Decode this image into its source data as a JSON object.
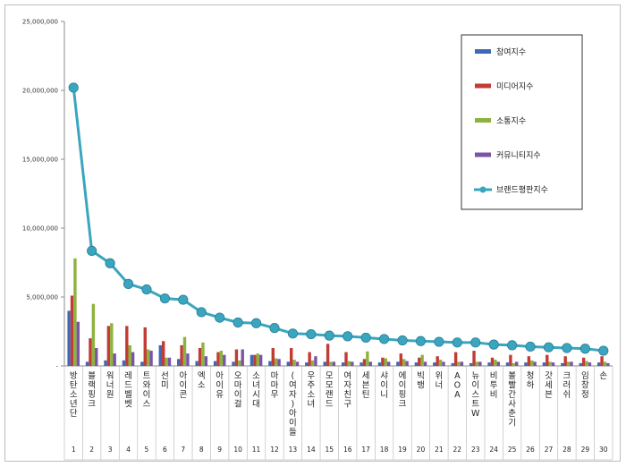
{
  "chart_data": {
    "type": "bar",
    "ylim": [
      0,
      25000000
    ],
    "y_ticks": [
      "-",
      "5,000,000",
      "10,000,000",
      "15,000,000",
      "20,000,000",
      "25,000,000"
    ],
    "y_tick_values": [
      0,
      5000000,
      10000000,
      15000000,
      20000000,
      25000000
    ],
    "grid": false,
    "legend_position": "top-right",
    "ranks": [
      "1",
      "2",
      "3",
      "4",
      "5",
      "6",
      "7",
      "8",
      "9",
      "10",
      "11",
      "12",
      "13",
      "14",
      "15",
      "16",
      "17",
      "18",
      "19",
      "20",
      "21",
      "22",
      "23",
      "24",
      "25",
      "26",
      "27",
      "28",
      "29",
      "30"
    ],
    "categories": [
      "방탄소년단",
      "블랙핑크",
      "워너원",
      "레드벨벳",
      "트와이스",
      "선미",
      "아이콘",
      "엑소",
      "아이유",
      "오마이걸",
      "소녀시대",
      "마마무",
      "(여자)아이들",
      "우주소녀",
      "모모랜드",
      "여자친구",
      "세븐틴",
      "샤이니",
      "에이핑크",
      "빅뱅",
      "위너",
      "AOA",
      "뉴이스트W",
      "비투비",
      "볼빨간사춘기",
      "청하",
      "갓세븐",
      "크러쉬",
      "임창정",
      "손"
    ],
    "series": [
      {
        "name": "참여지수",
        "type": "bar",
        "color": "#3f68b5",
        "values": [
          4000000,
          300000,
          400000,
          400000,
          300000,
          1500000,
          500000,
          350000,
          350000,
          300000,
          800000,
          350000,
          300000,
          250000,
          300000,
          250000,
          250000,
          250000,
          300000,
          250000,
          250000,
          200000,
          200000,
          250000,
          250000,
          250000,
          250000,
          200000,
          200000,
          250000
        ]
      },
      {
        "name": "미디어지수",
        "type": "bar",
        "color": "#c23b36",
        "values": [
          5100000,
          2000000,
          2900000,
          2900000,
          2800000,
          1800000,
          1500000,
          1300000,
          1000000,
          1200000,
          800000,
          1300000,
          1300000,
          1000000,
          1600000,
          1000000,
          500000,
          600000,
          900000,
          600000,
          700000,
          1000000,
          1100000,
          600000,
          800000,
          700000,
          800000,
          700000,
          600000,
          700000
        ]
      },
      {
        "name": "소통지수",
        "type": "bar",
        "color": "#8db33e",
        "values": [
          7800000,
          4500000,
          3100000,
          1500000,
          1200000,
          600000,
          2100000,
          1700000,
          1100000,
          400000,
          900000,
          550000,
          450000,
          400000,
          300000,
          350000,
          1050000,
          550000,
          500000,
          800000,
          450000,
          300000,
          300000,
          450000,
          200000,
          400000,
          300000,
          300000,
          350000,
          300000
        ]
      },
      {
        "name": "커뮤니티지수",
        "type": "bar",
        "color": "#7a54a6",
        "values": [
          3200000,
          1300000,
          900000,
          1000000,
          1100000,
          600000,
          900000,
          700000,
          800000,
          1200000,
          800000,
          500000,
          300000,
          700000,
          300000,
          300000,
          300000,
          300000,
          350000,
          300000,
          300000,
          300000,
          300000,
          300000,
          300000,
          300000,
          250000,
          300000,
          250000,
          200000
        ]
      },
      {
        "name": "브랜드평판지수",
        "type": "line",
        "color": "#3aa5bf",
        "values": [
          20200000,
          8350000,
          7450000,
          5950000,
          5550000,
          4900000,
          4800000,
          3900000,
          3500000,
          3150000,
          3100000,
          2750000,
          2350000,
          2300000,
          2200000,
          2150000,
          2050000,
          1950000,
          1850000,
          1800000,
          1750000,
          1700000,
          1700000,
          1550000,
          1500000,
          1400000,
          1350000,
          1300000,
          1250000,
          1100000
        ]
      }
    ]
  }
}
